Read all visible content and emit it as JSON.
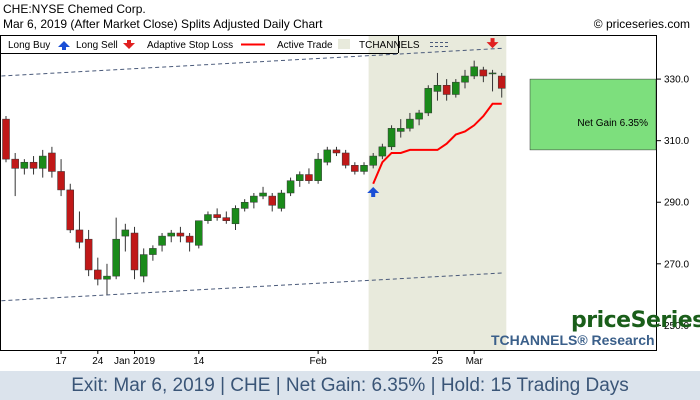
{
  "header": {
    "title": "CHE:NYSE Chemed Corp.",
    "subtitle": "Mar 6, 2019 (After Market Close)  Splits Adjusted Daily Chart",
    "copyright": "© priceseries.com"
  },
  "legend": {
    "long_buy": "Long Buy",
    "long_sell": "Long Sell",
    "adaptive_stop": "Adaptive Stop Loss",
    "active_trade": "Active Trade",
    "tchannels": "TCHANNELS"
  },
  "net_gain_label": "Net Gain 6.35%",
  "brand": {
    "name": "priceSeries",
    "research": "TCHANNELS® Research"
  },
  "footer": "Exit: Mar 6, 2019 | CHE | Net Gain: 6.35% | Hold: 15 Trading Days",
  "colors": {
    "up_candle": "#1a8a1a",
    "down_candle": "#c01818",
    "stop_line": "#ff0000",
    "active_trade_bg": "#e8eadc",
    "gain_box": "#7ddf7d",
    "channel": "#4a5a7a",
    "buy_arrow": "#1a4fd6",
    "sell_arrow": "#e02020"
  },
  "chart_data": {
    "type": "candlestick",
    "y_range": [
      242,
      344
    ],
    "y_ticks": [
      250,
      270,
      290,
      310,
      330
    ],
    "x_ticks": [
      {
        "i": 6,
        "label": "17"
      },
      {
        "i": 10,
        "label": "24"
      },
      {
        "i": 14,
        "label": "Jan 2019"
      },
      {
        "i": 21,
        "label": "14"
      },
      {
        "i": 34,
        "label": "Feb"
      },
      {
        "i": 47,
        "label": "25"
      },
      {
        "i": 51,
        "label": "Mar"
      }
    ],
    "candles": [
      {
        "o": 317,
        "h": 318,
        "l": 303,
        "c": 304
      },
      {
        "o": 304,
        "h": 306,
        "l": 292,
        "c": 301
      },
      {
        "o": 301,
        "h": 304,
        "l": 299,
        "c": 303
      },
      {
        "o": 303,
        "h": 305,
        "l": 299,
        "c": 301
      },
      {
        "o": 301,
        "h": 307,
        "l": 298,
        "c": 305
      },
      {
        "o": 306,
        "h": 308,
        "l": 298,
        "c": 300
      },
      {
        "o": 300,
        "h": 304,
        "l": 292,
        "c": 294
      },
      {
        "o": 294,
        "h": 296,
        "l": 280,
        "c": 281
      },
      {
        "o": 281,
        "h": 287,
        "l": 275,
        "c": 277
      },
      {
        "o": 278,
        "h": 281,
        "l": 266,
        "c": 268
      },
      {
        "o": 268,
        "h": 272,
        "l": 263,
        "c": 265
      },
      {
        "o": 265,
        "h": 270,
        "l": 260,
        "c": 266
      },
      {
        "o": 266,
        "h": 285,
        "l": 265,
        "c": 278
      },
      {
        "o": 279,
        "h": 283,
        "l": 274,
        "c": 281
      },
      {
        "o": 280,
        "h": 282,
        "l": 265,
        "c": 268
      },
      {
        "o": 266,
        "h": 275,
        "l": 264,
        "c": 273
      },
      {
        "o": 273,
        "h": 276,
        "l": 271,
        "c": 275
      },
      {
        "o": 276,
        "h": 280,
        "l": 274,
        "c": 279
      },
      {
        "o": 279,
        "h": 281,
        "l": 277,
        "c": 280
      },
      {
        "o": 280,
        "h": 282,
        "l": 277,
        "c": 279
      },
      {
        "o": 279,
        "h": 280,
        "l": 274,
        "c": 277
      },
      {
        "o": 276,
        "h": 284,
        "l": 275,
        "c": 284
      },
      {
        "o": 284,
        "h": 287,
        "l": 283,
        "c": 286
      },
      {
        "o": 286,
        "h": 288,
        "l": 284,
        "c": 285
      },
      {
        "o": 285,
        "h": 287,
        "l": 283,
        "c": 284
      },
      {
        "o": 283,
        "h": 289,
        "l": 281,
        "c": 288
      },
      {
        "o": 288,
        "h": 291,
        "l": 287,
        "c": 290
      },
      {
        "o": 290,
        "h": 293,
        "l": 288,
        "c": 292
      },
      {
        "o": 292,
        "h": 295,
        "l": 291,
        "c": 293
      },
      {
        "o": 292,
        "h": 293,
        "l": 287,
        "c": 289
      },
      {
        "o": 288,
        "h": 294,
        "l": 287,
        "c": 293
      },
      {
        "o": 293,
        "h": 298,
        "l": 292,
        "c": 297
      },
      {
        "o": 297,
        "h": 300,
        "l": 295,
        "c": 299
      },
      {
        "o": 299,
        "h": 301,
        "l": 296,
        "c": 297
      },
      {
        "o": 297,
        "h": 306,
        "l": 296,
        "c": 304
      },
      {
        "o": 303,
        "h": 308,
        "l": 302,
        "c": 307
      },
      {
        "o": 307,
        "h": 308,
        "l": 305,
        "c": 306
      },
      {
        "o": 306,
        "h": 307,
        "l": 301,
        "c": 302
      },
      {
        "o": 302,
        "h": 303,
        "l": 299,
        "c": 300
      },
      {
        "o": 300,
        "h": 303,
        "l": 299,
        "c": 302
      },
      {
        "o": 302,
        "h": 306,
        "l": 301,
        "c": 305
      },
      {
        "o": 305,
        "h": 309,
        "l": 304,
        "c": 308
      },
      {
        "o": 308,
        "h": 315,
        "l": 307,
        "c": 314
      },
      {
        "o": 313,
        "h": 317,
        "l": 311,
        "c": 314
      },
      {
        "o": 314,
        "h": 319,
        "l": 313,
        "c": 317
      },
      {
        "o": 317,
        "h": 320,
        "l": 315,
        "c": 319
      },
      {
        "o": 319,
        "h": 328,
        "l": 318,
        "c": 327
      },
      {
        "o": 326,
        "h": 332,
        "l": 323,
        "c": 328
      },
      {
        "o": 328,
        "h": 330,
        "l": 323,
        "c": 325
      },
      {
        "o": 325,
        "h": 330,
        "l": 324,
        "c": 329
      },
      {
        "o": 329,
        "h": 333,
        "l": 327,
        "c": 331
      },
      {
        "o": 331,
        "h": 336,
        "l": 330,
        "c": 334
      },
      {
        "o": 333,
        "h": 334,
        "l": 329,
        "c": 331
      },
      {
        "o": 332,
        "h": 333,
        "l": 326,
        "c": 332
      },
      {
        "o": 331,
        "h": 332,
        "l": 324,
        "c": 327
      }
    ],
    "stop_loss": [
      {
        "i": 40,
        "v": 296
      },
      {
        "i": 41,
        "v": 303
      },
      {
        "i": 42,
        "v": 306
      },
      {
        "i": 43,
        "v": 306
      },
      {
        "i": 44,
        "v": 307
      },
      {
        "i": 45,
        "v": 307
      },
      {
        "i": 46,
        "v": 307
      },
      {
        "i": 47,
        "v": 307
      },
      {
        "i": 48,
        "v": 309
      },
      {
        "i": 49,
        "v": 312
      },
      {
        "i": 50,
        "v": 313
      },
      {
        "i": 51,
        "v": 315
      },
      {
        "i": 52,
        "v": 318
      },
      {
        "i": 53,
        "v": 322
      },
      {
        "i": 54,
        "v": 322
      }
    ],
    "channel_upper": [
      {
        "i": -0.5,
        "v": 331
      },
      {
        "i": 54,
        "v": 340
      }
    ],
    "channel_lower": [
      {
        "i": -0.5,
        "v": 258
      },
      {
        "i": 54,
        "v": 267
      }
    ],
    "active_trade": {
      "start_i": 40,
      "end_i": 54.5
    },
    "buy_signal": {
      "i": 40,
      "v": 293
    },
    "sell_signal": {
      "i": 53,
      "v": 342
    },
    "gain_box": {
      "top": 330,
      "bottom": 307
    }
  }
}
